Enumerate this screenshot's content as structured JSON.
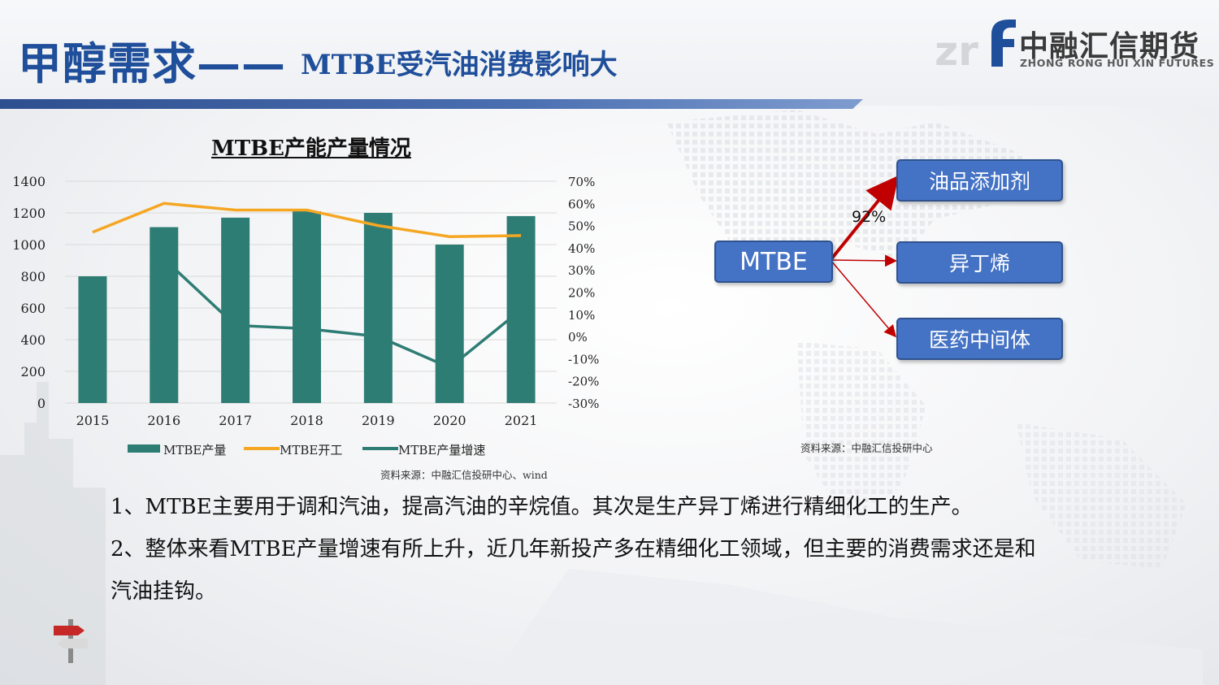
{
  "title": {
    "main": "甲醇需求——",
    "sub": "MTBE受汽油消费影响大"
  },
  "logo": {
    "cn": "中融汇信期货",
    "en": "ZHONG RONG HUI XIN FUTURES",
    "mark": "zrf"
  },
  "colors": {
    "title": "#1f4e9a",
    "bar": "#2e7d74",
    "line_capacity": "#f5a623",
    "line_growth": "#2e7d74",
    "node": "#4472c4",
    "arrow": "#c00000"
  },
  "chart_data": {
    "type": "bar",
    "title": "MTBE产能产量情况",
    "categories": [
      "2015",
      "2016",
      "2017",
      "2018",
      "2019",
      "2020",
      "2021"
    ],
    "y_left": {
      "min": 0,
      "max": 1400,
      "ticks": [
        "0",
        "200",
        "400",
        "600",
        "800",
        "1000",
        "1200",
        "1400"
      ]
    },
    "y_right": {
      "min": -30,
      "max": 70,
      "ticks": [
        "-30%",
        "-20%",
        "-10%",
        "0%",
        "10%",
        "20%",
        "30%",
        "40%",
        "50%",
        "60%",
        "70%"
      ]
    },
    "series": [
      {
        "name": "MTBE产量",
        "kind": "bar",
        "axis": "left",
        "values": [
          800,
          1110,
          1170,
          1210,
          1200,
          1000,
          1180
        ]
      },
      {
        "name": "MTBE开工",
        "kind": "line",
        "axis": "right",
        "values": [
          47,
          60,
          57,
          57,
          50,
          45,
          45.5
        ]
      },
      {
        "name": "MTBE产量增速",
        "kind": "line",
        "axis": "right",
        "values": [
          null,
          35,
          5,
          3.5,
          0,
          -14,
          12
        ]
      }
    ],
    "legend_position": "bottom",
    "grid": true
  },
  "chart_source": "资料来源：中融汇信投研中心、wind",
  "diagram": {
    "source_node": "MTBE",
    "targets": [
      "油品添加剂",
      "异丁烯",
      "医药中间体"
    ],
    "share_label": "92%",
    "source": "资料来源：中融汇信投研中心"
  },
  "paragraphs": [
    "1、MTBE主要用于调和汽油，提高汽油的辛烷值。其次是生产异丁烯进行精细化工的生产。",
    "2、整体来看MTBE产量增速有所上升，近几年新投产多在精细化工领域，但主要的消费需求还是和",
    "汽油挂钩。"
  ]
}
